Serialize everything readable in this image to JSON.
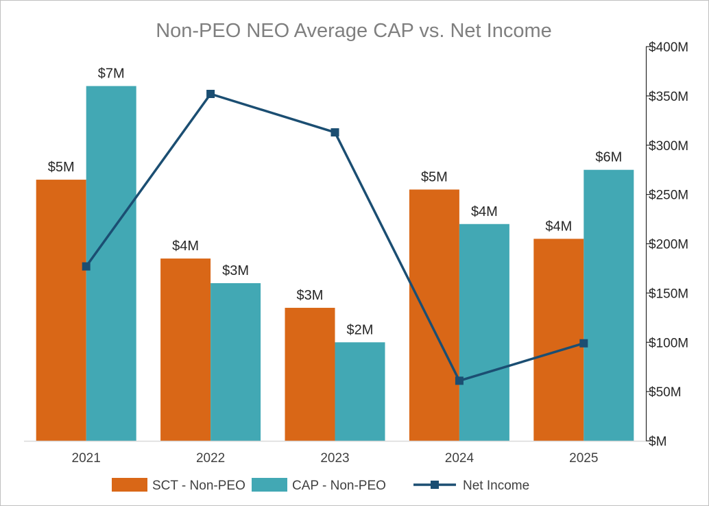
{
  "chart_data": {
    "type": "bar",
    "title": "Non-PEO NEO Average CAP vs. Net Income",
    "categories": [
      "2021",
      "2022",
      "2023",
      "2024",
      "2025"
    ],
    "series": [
      {
        "name": "SCT - Non-PEO",
        "kind": "bar",
        "axis": "left",
        "color": "#d96717",
        "values": [
          5.3,
          3.7,
          2.7,
          5.1,
          4.1
        ],
        "labels": [
          "$5M",
          "$4M",
          "$3M",
          "$5M",
          "$4M"
        ]
      },
      {
        "name": "CAP - Non-PEO",
        "kind": "bar",
        "axis": "left",
        "color": "#42a8b4",
        "values": [
          7.2,
          3.2,
          2.0,
          4.4,
          5.5
        ],
        "labels": [
          "$7M",
          "$3M",
          "$2M",
          "$4M",
          "$6M"
        ]
      },
      {
        "name": "Net Income",
        "kind": "line",
        "axis": "right",
        "color": "#1b4e72",
        "values": [
          177,
          352,
          313,
          61,
          99
        ]
      }
    ],
    "ylim_left": [
      0,
      8
    ],
    "ylim_right": [
      0,
      400
    ],
    "right_ticks": [
      0,
      50,
      100,
      150,
      200,
      250,
      300,
      350,
      400
    ],
    "right_tick_labels": [
      "$M",
      "$50M",
      "$100M",
      "$150M",
      "$200M",
      "$250M",
      "$300M",
      "$350M",
      "$400M"
    ],
    "legend_position": "bottom",
    "grid": false
  }
}
